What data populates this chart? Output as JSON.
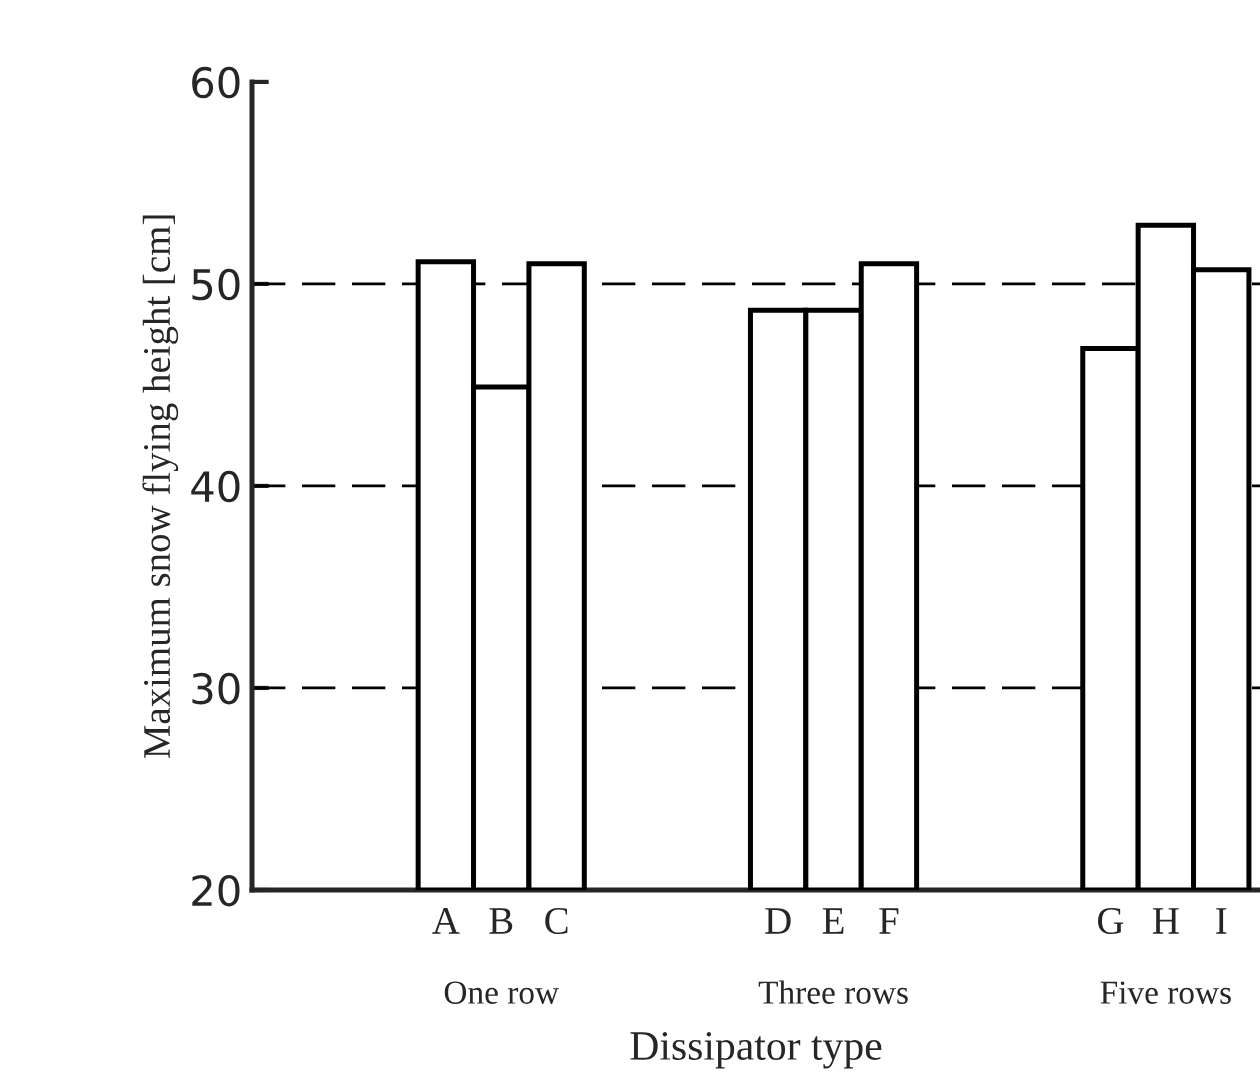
{
  "chart_data": {
    "type": "bar",
    "xlabel": "Dissipator type",
    "ylabel": "Maximum snow flying height [cm]",
    "categories": [
      "A",
      "B",
      "C",
      null,
      null,
      null,
      "D",
      "E",
      "F",
      null,
      null,
      null,
      "G",
      "H",
      "I"
    ],
    "values": [
      51.1,
      44.9,
      51.0,
      null,
      null,
      null,
      48.7,
      48.7,
      51.0,
      null,
      null,
      null,
      46.8,
      52.9,
      50.7
    ],
    "color": "#ffffff",
    "ylim": [
      20,
      60
    ],
    "yticks": [
      20,
      30,
      40,
      50,
      60
    ],
    "grid": "y",
    "line_style": "dashed",
    "annotations": [
      "One row",
      "Three rows",
      "Five rows"
    ]
  }
}
